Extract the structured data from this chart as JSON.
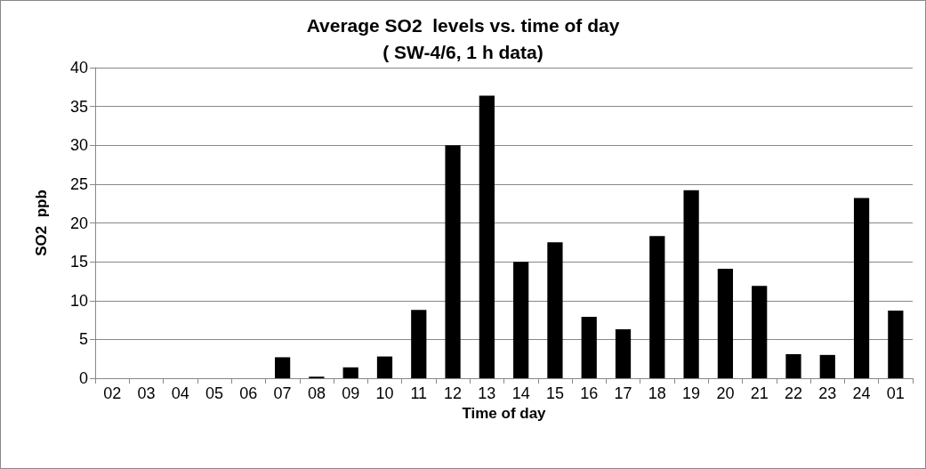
{
  "chart_data": {
    "type": "bar",
    "title": "Average SO2  levels vs. time of day",
    "subtitle": "( SW-4/6, 1 h data)",
    "xlabel": "Time of day",
    "ylabel": "SO2  ppb",
    "categories": [
      "02",
      "03",
      "04",
      "05",
      "06",
      "07",
      "08",
      "09",
      "10",
      "11",
      "12",
      "13",
      "14",
      "15",
      "16",
      "17",
      "18",
      "19",
      "20",
      "21",
      "22",
      "23",
      "24",
      "01"
    ],
    "values": [
      0,
      0,
      0,
      0,
      0,
      2.7,
      0.2,
      1.4,
      2.8,
      8.8,
      30.0,
      36.4,
      15.0,
      17.5,
      7.9,
      6.3,
      18.3,
      24.2,
      14.1,
      11.9,
      3.1,
      3.0,
      23.2,
      8.7
    ],
    "color": "#000000",
    "ylim": [
      0,
      40
    ],
    "yticks": [
      0,
      5,
      10,
      15,
      20,
      25,
      30,
      35,
      40
    ],
    "grid": "y"
  }
}
